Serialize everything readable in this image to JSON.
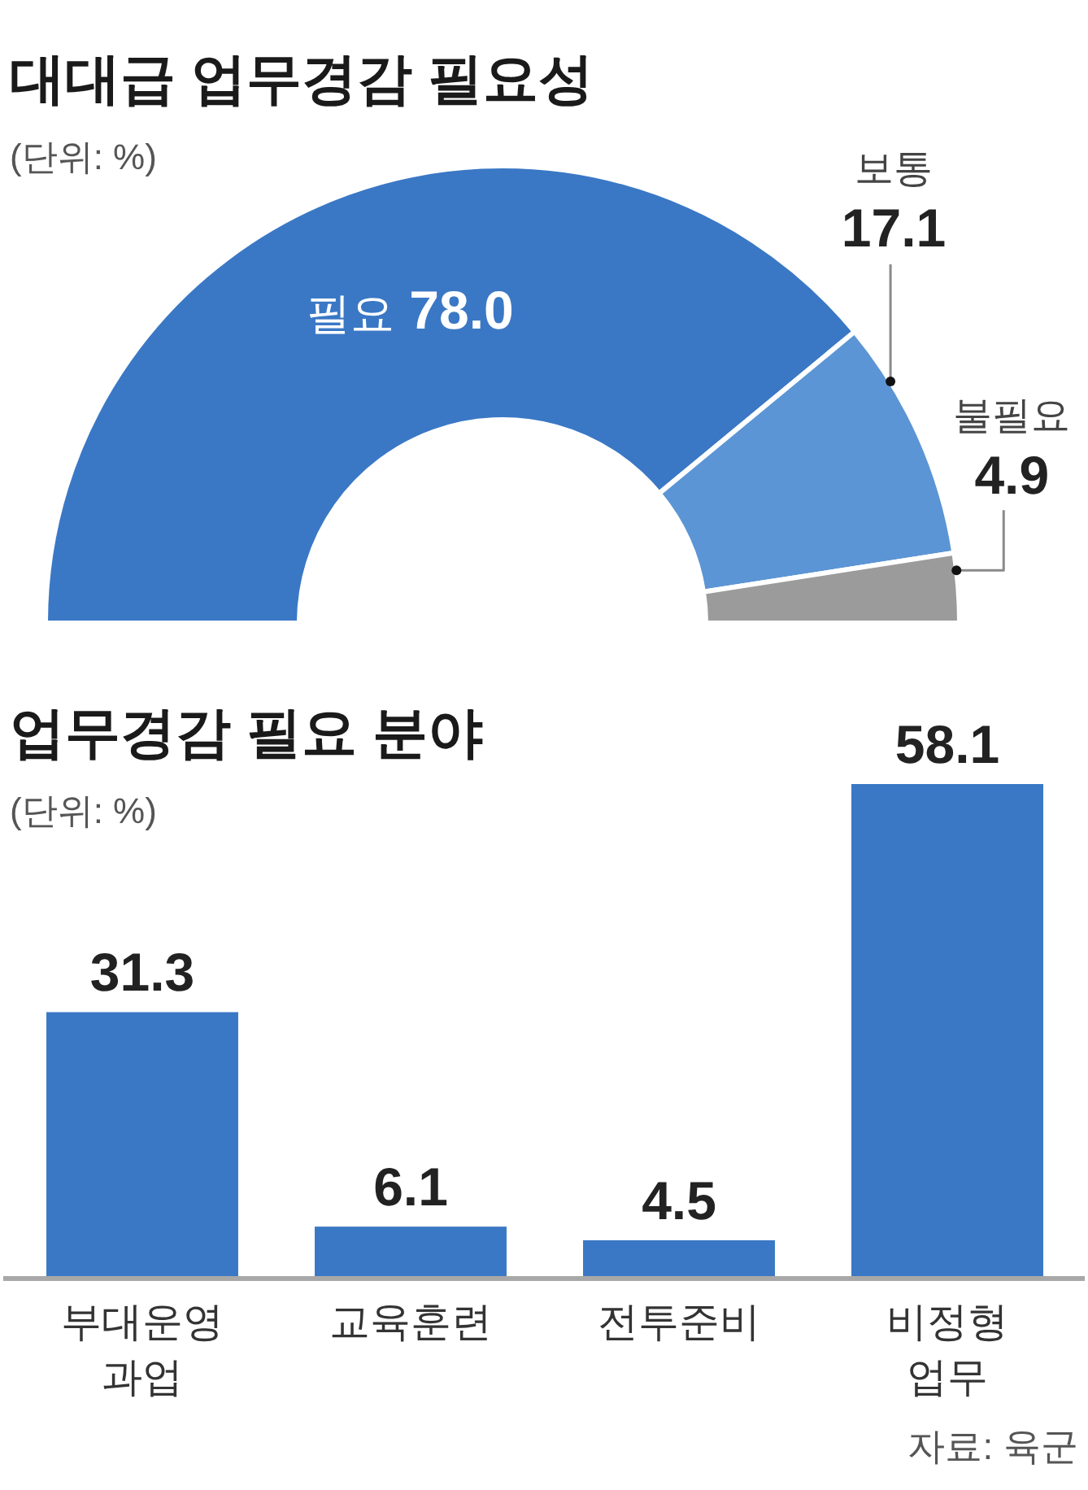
{
  "chart_data": [
    {
      "type": "donut",
      "title": "대대급 업무경감 필요성",
      "subtitle": "(단위: %)",
      "categories": [
        "필요",
        "보통",
        "불필요"
      ],
      "values": [
        78.0,
        17.1,
        4.9
      ],
      "colors": [
        "#3a78c5",
        "#5b95d5",
        "#9b9b9b"
      ],
      "value_labels": [
        "78.0",
        "17.1",
        "4.9"
      ]
    },
    {
      "type": "bar",
      "title": "업무경감 필요 분야",
      "subtitle": "(단위: %)",
      "categories": [
        "부대운영\n과업",
        "교육훈련",
        "전투준비",
        "비정형\n업무"
      ],
      "values": [
        31.3,
        6.1,
        4.5,
        58.1
      ],
      "color": "#3a78c5",
      "data_labels": true,
      "annotations": [
        "자료: 육군"
      ]
    }
  ]
}
